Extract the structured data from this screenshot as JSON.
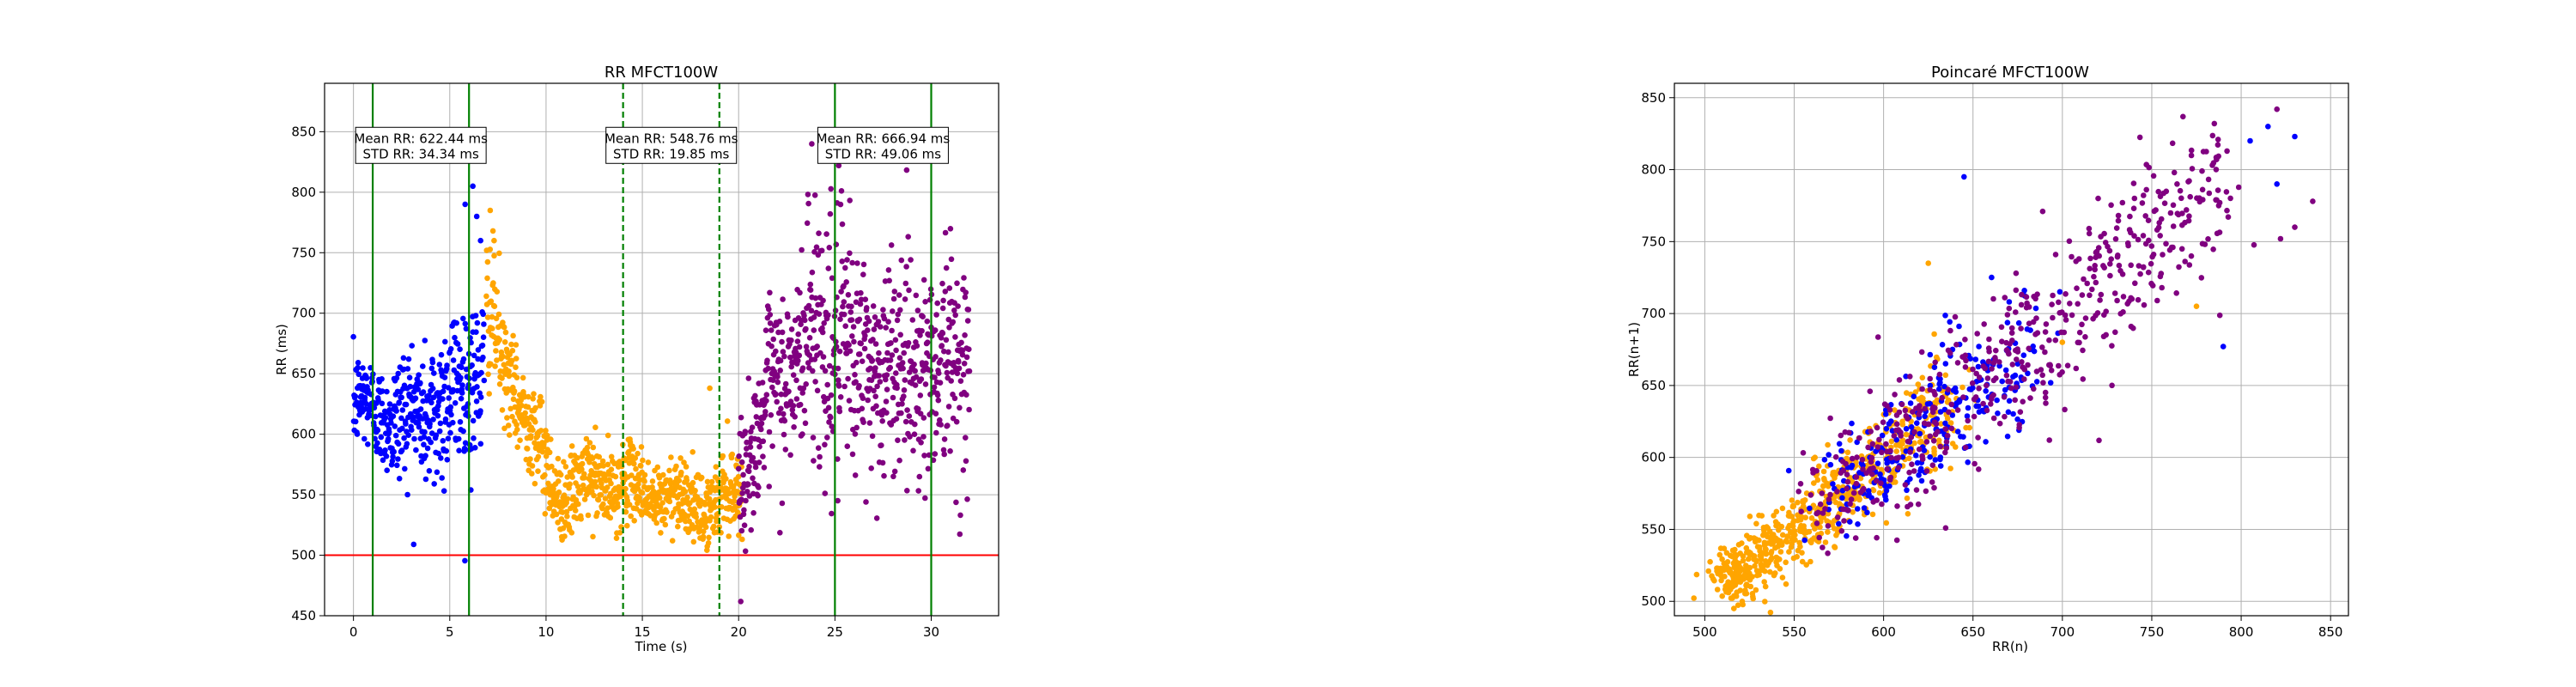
{
  "colors": {
    "baseline": "#0000ff",
    "exercise": "#ffa500",
    "recovery": "#800080",
    "threshold": "#ff0000",
    "marker": "#008000",
    "grid": "#b0b0b0"
  },
  "chart_data": [
    {
      "type": "scatter",
      "title": "RR MFCT100W",
      "xlabel": "Time (s)",
      "ylabel": "RR (ms)",
      "xlim": [
        -1.5,
        33.5
      ],
      "ylim": [
        450,
        890
      ],
      "xticks": [
        0,
        5,
        10,
        15,
        20,
        25,
        30
      ],
      "yticks": [
        450,
        500,
        550,
        600,
        650,
        700,
        750,
        800,
        850
      ],
      "grid": true,
      "threshold_line": {
        "y": 500
      },
      "vertical_lines": [
        {
          "x": 1,
          "style": "solid"
        },
        {
          "x": 6,
          "style": "solid"
        },
        {
          "x": 14,
          "style": "dashed"
        },
        {
          "x": 19,
          "style": "dashed"
        },
        {
          "x": 25,
          "style": "solid"
        },
        {
          "x": 30,
          "style": "solid"
        }
      ],
      "annotations": [
        {
          "x": 3.5,
          "y": 838,
          "line1": "Mean RR: 622.44 ms",
          "line2": "STD RR: 34.34 ms"
        },
        {
          "x": 16.5,
          "y": 838,
          "line1": "Mean RR: 548.76 ms",
          "line2": "STD RR: 19.85 ms"
        },
        {
          "x": 27.5,
          "y": 838,
          "line1": "Mean RR: 666.94 ms",
          "line2": "STD RR: 49.06 ms"
        }
      ],
      "series": [
        {
          "color": "baseline",
          "segments": [
            {
              "t0": 0.0,
              "t1": 2.0,
              "m0": 625,
              "m1": 615,
              "s": 20
            },
            {
              "t0": 2.0,
              "t1": 4.0,
              "m0": 612,
              "m1": 618,
              "s": 28
            },
            {
              "t0": 4.0,
              "t1": 6.8,
              "m0": 618,
              "m1": 655,
              "s": 35
            }
          ],
          "outliers": [
            [
              6.0,
              830
            ],
            [
              6.2,
              805
            ],
            [
              6.4,
              780
            ],
            [
              5.8,
              790
            ],
            [
              6.6,
              760
            ]
          ]
        },
        {
          "color": "exercise",
          "segments": [
            {
              "t0": 6.9,
              "t1": 7.6,
              "m0": 710,
              "m1": 670,
              "s": 30
            },
            {
              "t0": 7.6,
              "t1": 9.5,
              "m0": 655,
              "m1": 605,
              "s": 20
            },
            {
              "t0": 9.5,
              "t1": 10.8,
              "m0": 590,
              "m1": 540,
              "s": 20
            },
            {
              "t0": 10.8,
              "t1": 14.0,
              "m0": 555,
              "m1": 560,
              "s": 17
            },
            {
              "t0": 14.0,
              "t1": 19.0,
              "m0": 558,
              "m1": 538,
              "s": 15
            },
            {
              "t0": 19.0,
              "t1": 20.2,
              "m0": 545,
              "m1": 560,
              "s": 18
            }
          ],
          "outliers": [
            [
              7.1,
              785
            ],
            [
              7.3,
              760
            ],
            [
              18.5,
              638
            ]
          ]
        },
        {
          "color": "recovery",
          "segments": [
            {
              "t0": 20.0,
              "t1": 21.5,
              "m0": 560,
              "m1": 620,
              "s": 25
            },
            {
              "t0": 21.5,
              "t1": 23.5,
              "m0": 625,
              "m1": 670,
              "s": 40
            },
            {
              "t0": 23.5,
              "t1": 26.0,
              "m0": 690,
              "m1": 665,
              "s": 55
            },
            {
              "t0": 26.0,
              "t1": 32.0,
              "m0": 655,
              "m1": 660,
              "s": 45
            }
          ],
          "outliers": [
            [
              23.8,
              840
            ],
            [
              24.3,
              828
            ],
            [
              25.2,
              822
            ]
          ]
        }
      ]
    },
    {
      "type": "scatter",
      "title": "Poincaré MFCT100W",
      "xlabel": "RR(n)",
      "ylabel": "RR(n+1)",
      "xlim": [
        483,
        860
      ],
      "ylim": [
        490,
        860
      ],
      "xticks": [
        500,
        550,
        600,
        650,
        700,
        750,
        800,
        850
      ],
      "yticks": [
        500,
        550,
        600,
        650,
        700,
        750,
        800,
        850
      ],
      "grid": true,
      "clusters": [
        {
          "color": "exercise",
          "count": 650,
          "xmin": 510,
          "xmax": 640,
          "spread": 12
        },
        {
          "color": "baseline",
          "count": 260,
          "xmin": 570,
          "xmax": 680,
          "spread": 18
        },
        {
          "color": "recovery",
          "count": 520,
          "xmin": 560,
          "xmax": 790,
          "spread": 22
        }
      ],
      "outliers": [
        {
          "color": "baseline",
          "points": [
            [
              645,
              795
            ],
            [
              790,
              677
            ],
            [
              805,
              820
            ],
            [
              820,
              790
            ],
            [
              815,
              830
            ],
            [
              830,
              823
            ]
          ]
        },
        {
          "color": "recovery",
          "points": [
            [
              785,
              832
            ],
            [
              820,
              842
            ],
            [
              840,
              778
            ],
            [
              822,
              752
            ],
            [
              830,
              760
            ],
            [
              720,
              780
            ]
          ]
        },
        {
          "color": "exercise",
          "points": [
            [
              625,
              735
            ],
            [
              700,
              680
            ],
            [
              775,
              705
            ]
          ]
        }
      ]
    }
  ]
}
